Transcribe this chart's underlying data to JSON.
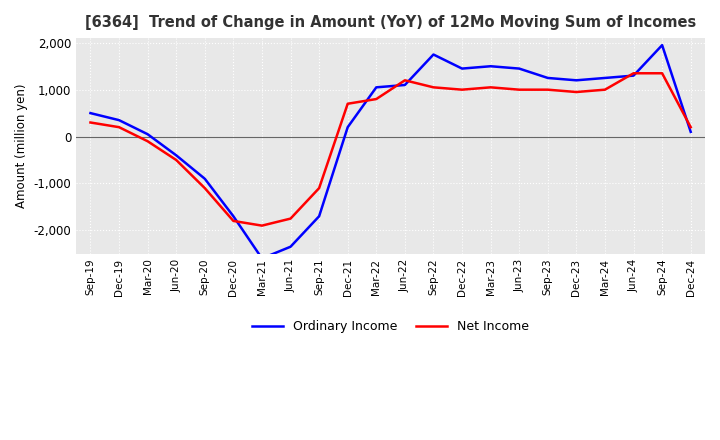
{
  "title": "[6364]  Trend of Change in Amount (YoY) of 12Mo Moving Sum of Incomes",
  "ylabel": "Amount (million yen)",
  "ylim": [
    -2500,
    2100
  ],
  "yticks": [
    -2000,
    -1000,
    0,
    1000,
    2000
  ],
  "background_color": "#ffffff",
  "plot_bg_color": "#e8e8e8",
  "grid_color": "#ffffff",
  "ordinary_income_color": "#0000ff",
  "net_income_color": "#ff0000",
  "line_width": 1.8,
  "x_labels": [
    "Sep-19",
    "Dec-19",
    "Mar-20",
    "Jun-20",
    "Sep-20",
    "Dec-20",
    "Mar-21",
    "Jun-21",
    "Sep-21",
    "Dec-21",
    "Mar-22",
    "Jun-22",
    "Sep-22",
    "Dec-22",
    "Mar-23",
    "Jun-23",
    "Sep-23",
    "Dec-23",
    "Mar-24",
    "Jun-24",
    "Sep-24",
    "Dec-24"
  ],
  "ordinary_income": [
    500,
    350,
    50,
    -400,
    -900,
    -1700,
    -2600,
    -2350,
    -1700,
    200,
    1050,
    1100,
    1750,
    1450,
    1500,
    1450,
    1250,
    1200,
    1250,
    1300,
    1950,
    100
  ],
  "net_income": [
    300,
    200,
    -100,
    -500,
    -1100,
    -1800,
    -1900,
    -1750,
    -1100,
    700,
    800,
    1200,
    1050,
    1000,
    1050,
    1000,
    1000,
    950,
    1000,
    1350,
    1350,
    200
  ]
}
